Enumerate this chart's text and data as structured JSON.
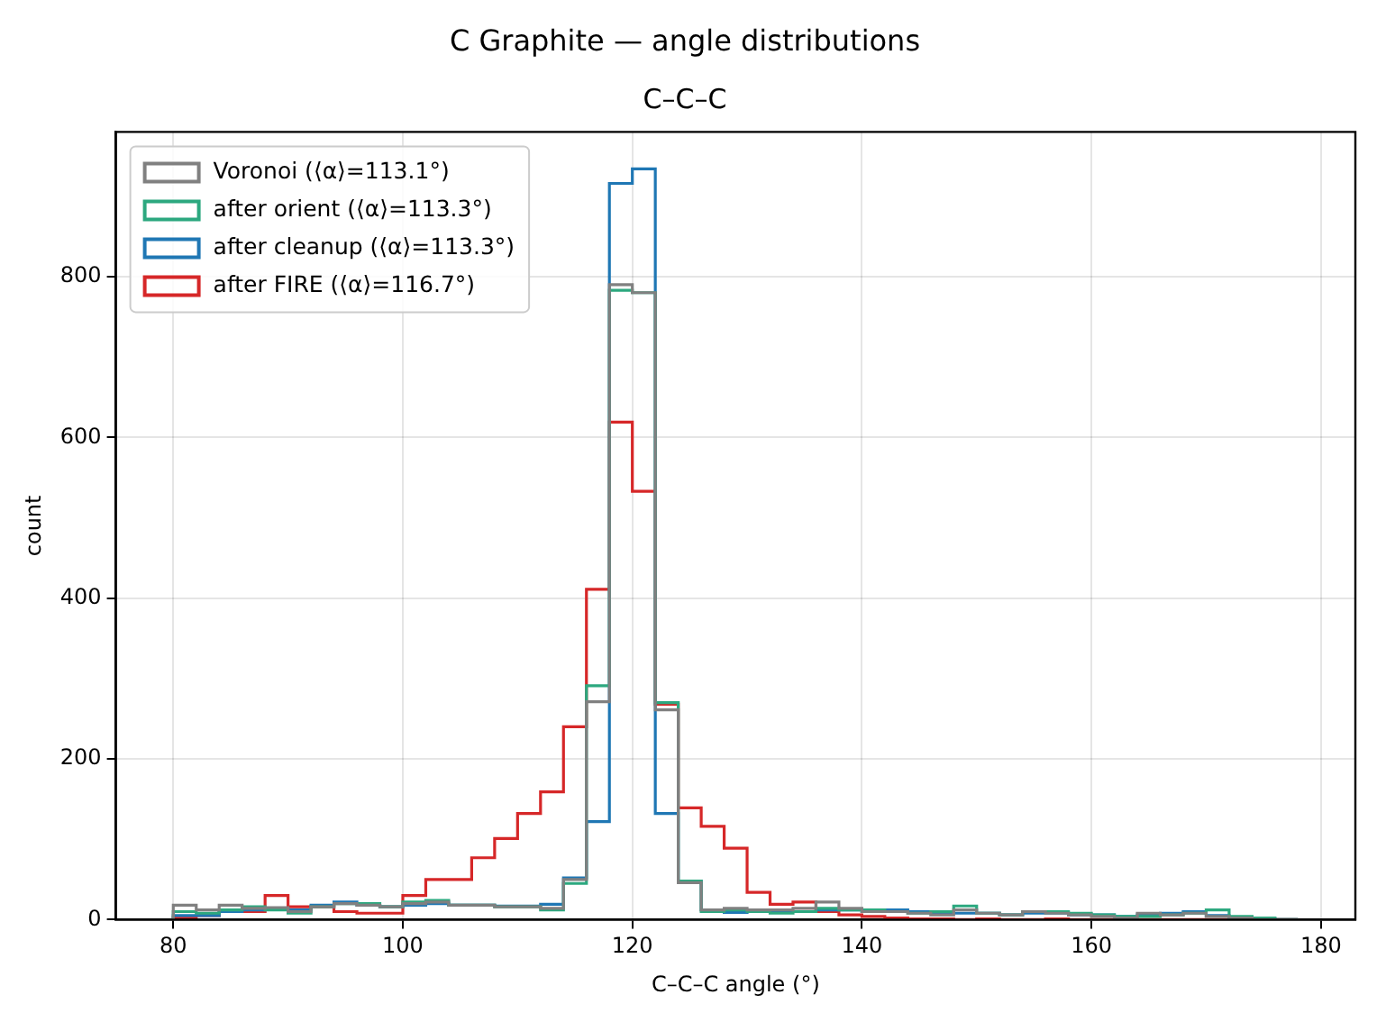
{
  "chart_data": {
    "type": "histogram",
    "title": "C Graphite — angle distributions",
    "subtitle": "C–C–C",
    "xlabel": "C–C–C angle (°)",
    "ylabel": "count",
    "bins": [
      80,
      82,
      84,
      86,
      88,
      90,
      92,
      94,
      96,
      98,
      100,
      102,
      104,
      106,
      108,
      110,
      112,
      114,
      116,
      118,
      120,
      122,
      124,
      126,
      128,
      130,
      132,
      134,
      136,
      138,
      140,
      142,
      144,
      146,
      148,
      150,
      152,
      154,
      156,
      158,
      160,
      162,
      164,
      166,
      168,
      170,
      172,
      174,
      176,
      178
    ],
    "series": [
      {
        "name": "Voronoi (⟨α⟩=113.1°)",
        "color": "#808080",
        "values": [
          18,
          12,
          18,
          14,
          15,
          10,
          16,
          20,
          18,
          16,
          20,
          22,
          18,
          18,
          16,
          16,
          14,
          50,
          271,
          790,
          780,
          261,
          46,
          12,
          14,
          12,
          12,
          14,
          22,
          14,
          10,
          10,
          8,
          6,
          12,
          8,
          6,
          10,
          8,
          6,
          4,
          2,
          8,
          6,
          8,
          4,
          2,
          0,
          0
        ]
      },
      {
        "name": "after orient (⟨α⟩=113.3°)",
        "color": "#2ca87f",
        "values": [
          10,
          8,
          12,
          16,
          12,
          8,
          16,
          20,
          20,
          16,
          22,
          24,
          18,
          18,
          16,
          16,
          12,
          45,
          291,
          783,
          780,
          270,
          48,
          10,
          12,
          10,
          8,
          10,
          14,
          12,
          12,
          10,
          8,
          10,
          17,
          8,
          6,
          10,
          10,
          8,
          6,
          4,
          4,
          6,
          8,
          12,
          4,
          2,
          0
        ]
      },
      {
        "name": "after cleanup (⟨α⟩=113.3°)",
        "color": "#1f77b4",
        "values": [
          5,
          5,
          10,
          12,
          14,
          12,
          18,
          22,
          18,
          16,
          18,
          20,
          18,
          18,
          17,
          17,
          19,
          52,
          122,
          916,
          934,
          132,
          48,
          12,
          9,
          12,
          10,
          10,
          12,
          12,
          10,
          12,
          10,
          8,
          8,
          8,
          6,
          8,
          8,
          6,
          6,
          4,
          6,
          8,
          10,
          5,
          2,
          1,
          0
        ]
      },
      {
        "name": "after FIRE (⟨α⟩=116.7°)",
        "color": "#d62728",
        "values": [
          3,
          5,
          10,
          10,
          30,
          16,
          16,
          10,
          8,
          8,
          30,
          50,
          50,
          77,
          101,
          132,
          159,
          240,
          411,
          619,
          533,
          268,
          139,
          116,
          89,
          34,
          19,
          22,
          10,
          6,
          4,
          2,
          1,
          1,
          0,
          1,
          0,
          0,
          1,
          0,
          0,
          0,
          0,
          0,
          0,
          0,
          0,
          0,
          0
        ]
      }
    ],
    "xlim": [
      75,
      183
    ],
    "xticks": [
      80,
      100,
      120,
      140,
      160,
      180
    ],
    "ylim": [
      0,
      980
    ],
    "yticks": [
      0,
      200,
      400,
      600,
      800
    ],
    "grid": true,
    "legend": "top left"
  }
}
